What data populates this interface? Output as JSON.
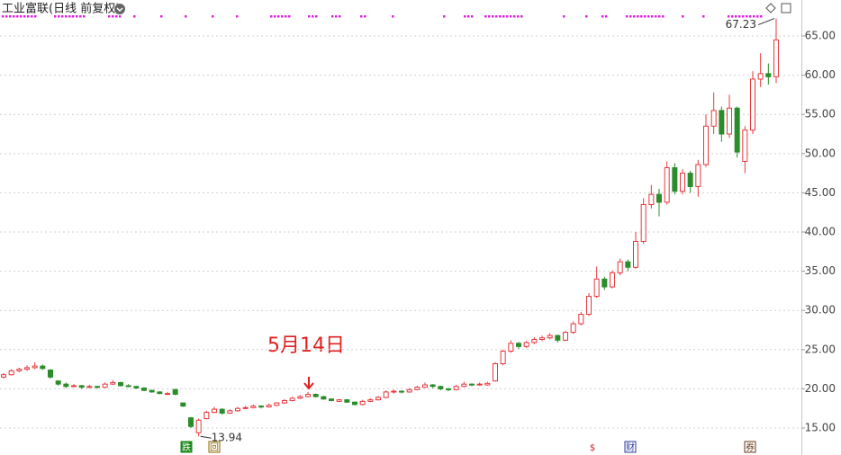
{
  "chart_data": {
    "type": "candlestick",
    "title": "工业富联(日线 前复权)",
    "up_color": "#e8383d",
    "down_color": "#2a8c2a",
    "ylim": [
      11.56,
      69.59
    ],
    "yticks": [
      {
        "value": 15,
        "label": "15.00"
      },
      {
        "value": 20,
        "label": "20.00"
      },
      {
        "value": 25,
        "label": "25.00"
      },
      {
        "value": 30,
        "label": "30.00"
      },
      {
        "value": 35,
        "label": "35.00"
      },
      {
        "value": 40,
        "label": "40.00"
      },
      {
        "value": 45,
        "label": "45.00"
      },
      {
        "value": 50,
        "label": "50.00"
      },
      {
        "value": 55,
        "label": "55.00"
      },
      {
        "value": 60,
        "label": "60.00"
      },
      {
        "value": 65,
        "label": "65.00"
      }
    ],
    "grid": true,
    "open": [
      21.5,
      21.8,
      22.3,
      22.5,
      22.7,
      22.9,
      22.4,
      21.0,
      20.6,
      20.3,
      20.4,
      20.2,
      20.3,
      20.2,
      20.6,
      20.8,
      20.4,
      20.3,
      20.1,
      19.8,
      19.6,
      19.4,
      19.9,
      18.2,
      16.3,
      14.4,
      16.2,
      17.0,
      17.4,
      16.9,
      17.2,
      17.5,
      17.6,
      17.8,
      17.7,
      17.9,
      18.2,
      18.5,
      18.8,
      19.0,
      19.3,
      19.0,
      18.7,
      18.4,
      18.6,
      18.3,
      18.0,
      18.4,
      18.6,
      18.9,
      19.6,
      19.7,
      19.6,
      19.9,
      20.2,
      20.5,
      20.3,
      20.0,
      19.9,
      20.3,
      20.6,
      20.5,
      20.5,
      21.0,
      23.2,
      24.8,
      25.8,
      25.4,
      25.9,
      26.3,
      26.5,
      26.8,
      26.2,
      27.2,
      28.3,
      29.5,
      31.8,
      34.0,
      33.0,
      34.8,
      36.2,
      35.5,
      38.8,
      43.5,
      44.8,
      43.8,
      48.2,
      45.2,
      47.5,
      45.8,
      48.6,
      53.5,
      55.5,
      52.5,
      55.8,
      49.0,
      53.0,
      59.5,
      60.2,
      59.8
    ],
    "high": [
      22.0,
      22.5,
      22.7,
      23.0,
      23.4,
      23.1,
      22.5,
      21.1,
      20.8,
      20.6,
      20.5,
      20.5,
      20.4,
      20.8,
      21.1,
      20.9,
      20.6,
      20.4,
      20.2,
      19.9,
      19.7,
      19.6,
      20.0,
      18.2,
      16.4,
      16.2,
      17.2,
      17.7,
      17.5,
      17.4,
      17.7,
      17.8,
      18.0,
      17.9,
      18.1,
      18.3,
      18.7,
      19.0,
      19.2,
      19.6,
      19.4,
      19.1,
      18.8,
      18.7,
      18.7,
      18.4,
      18.6,
      18.8,
      19.1,
      19.8,
      19.9,
      19.8,
      20.1,
      20.4,
      20.8,
      20.6,
      20.4,
      20.1,
      20.5,
      20.9,
      20.7,
      20.8,
      20.9,
      23.4,
      25.0,
      26.2,
      26.0,
      26.1,
      26.6,
      26.8,
      27.1,
      26.9,
      27.4,
      28.6,
      29.8,
      32.2,
      35.6,
      34.3,
      35.1,
      36.6,
      36.5,
      40.0,
      44.3,
      46.0,
      45.5,
      49.0,
      48.8,
      48.0,
      47.8,
      49.2,
      55.0,
      57.8,
      56.0,
      57.5,
      56.0,
      53.5,
      60.5,
      62.8,
      61.5,
      67.23
    ],
    "low": [
      21.3,
      21.7,
      22.1,
      22.3,
      22.5,
      22.4,
      21.3,
      20.4,
      20.1,
      20.2,
      20.0,
      20.1,
      20.0,
      20.1,
      20.5,
      20.3,
      20.2,
      20.0,
      19.7,
      19.5,
      19.3,
      19.3,
      19.2,
      17.7,
      15.0,
      13.94,
      16.1,
      16.9,
      16.7,
      16.8,
      17.1,
      17.4,
      17.5,
      17.5,
      17.6,
      17.8,
      18.1,
      18.4,
      18.7,
      18.9,
      18.9,
      18.6,
      18.4,
      18.3,
      18.2,
      17.9,
      17.9,
      18.3,
      18.5,
      18.8,
      19.4,
      19.4,
      19.5,
      19.8,
      20.1,
      20.1,
      19.8,
      19.7,
      19.8,
      20.2,
      20.3,
      20.4,
      20.4,
      20.9,
      23.0,
      24.6,
      25.1,
      25.2,
      25.7,
      26.1,
      26.3,
      25.9,
      26.1,
      27.0,
      28.1,
      29.3,
      31.6,
      32.6,
      32.8,
      34.5,
      35.0,
      35.3,
      38.5,
      43.0,
      42.0,
      43.5,
      44.8,
      44.8,
      45.0,
      44.5,
      48.3,
      52.5,
      51.5,
      52.0,
      49.5,
      47.5,
      52.5,
      58.5,
      58.8,
      59.0
    ],
    "close": [
      21.8,
      22.3,
      22.5,
      22.7,
      22.9,
      22.6,
      21.5,
      20.6,
      20.3,
      20.4,
      20.2,
      20.3,
      20.2,
      20.6,
      20.8,
      20.4,
      20.3,
      20.1,
      19.8,
      19.6,
      19.4,
      19.4,
      19.3,
      17.8,
      15.2,
      16.0,
      17.0,
      17.4,
      16.9,
      17.2,
      17.5,
      17.6,
      17.8,
      17.7,
      17.9,
      18.2,
      18.5,
      18.8,
      19.0,
      19.3,
      19.0,
      18.7,
      18.5,
      18.6,
      18.3,
      18.0,
      18.4,
      18.6,
      18.9,
      19.6,
      19.7,
      19.6,
      19.9,
      20.2,
      20.5,
      20.3,
      20.0,
      19.9,
      20.3,
      20.6,
      20.5,
      20.6,
      20.7,
      23.2,
      24.8,
      25.8,
      25.4,
      25.9,
      26.3,
      26.5,
      26.8,
      26.2,
      27.2,
      28.3,
      29.5,
      31.8,
      34.0,
      33.0,
      34.8,
      36.2,
      35.5,
      38.8,
      43.5,
      44.8,
      43.8,
      48.2,
      45.2,
      47.5,
      45.8,
      48.6,
      53.5,
      55.5,
      52.5,
      55.8,
      50.2,
      53.0,
      59.5,
      60.2,
      59.8,
      64.5
    ],
    "annotation": "5月14日",
    "event_icons": [
      "跌",
      "回",
      "$",
      "财",
      "券"
    ]
  }
}
